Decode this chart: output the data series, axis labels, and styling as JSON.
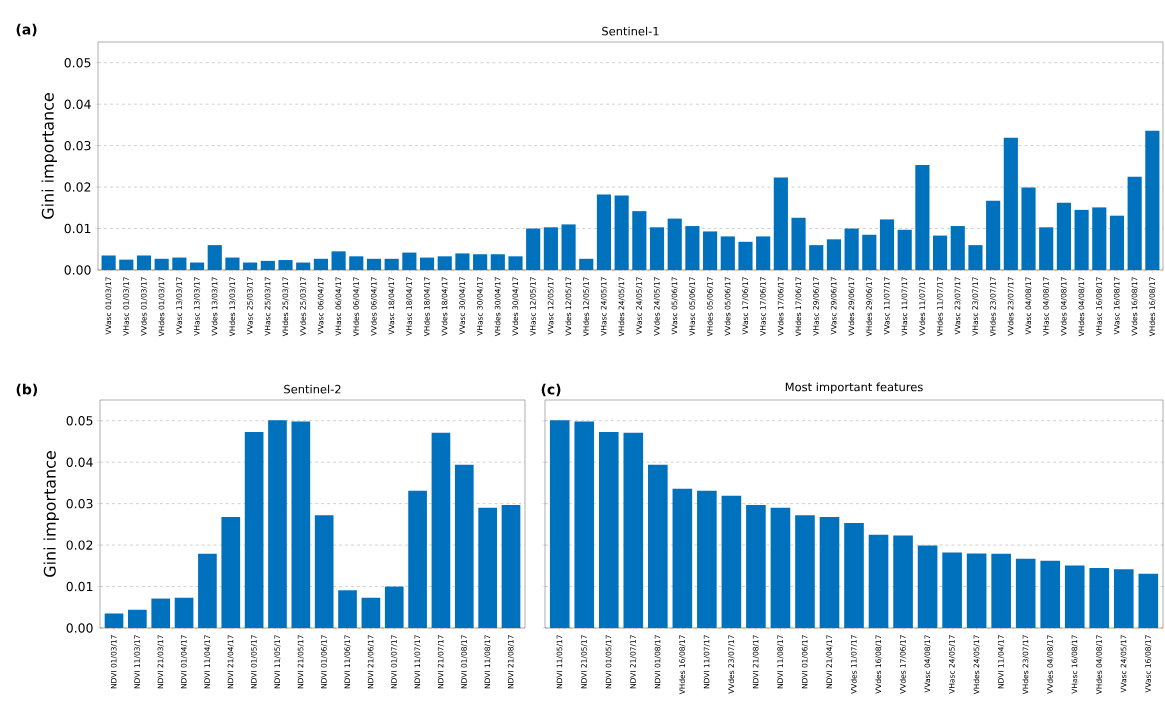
{
  "chart_data": [
    {
      "type": "bar",
      "title": "Sentinel-1",
      "ylabel": "Gini importance",
      "annotations": [
        "(a)"
      ],
      "color": "#0072bd",
      "grid": "y",
      "categories": [
        "VVasc 01/03/17",
        "VHasc 01/03/17",
        "VVdes 01/03/17",
        "VHdes 01/03/17",
        "VVasc 13/03/17",
        "VHasc 13/03/17",
        "VVdes 13/03/17",
        "VHdes 13/03/17",
        "VVasc 25/03/17",
        "VHasc 25/03/17",
        "VHdes 25/03/17",
        "VVdes 25/03/17",
        "VVasc 06/04/17",
        "VHasc 06/04/17",
        "VHdes 06/04/17",
        "VVdes 06/04/17",
        "VVasc 18/04/17",
        "VHasc 18/04/17",
        "VHdes 18/04/17",
        "VVdes 18/04/17",
        "VVasc 30/04/17",
        "VHasc 30/04/17",
        "VHdes 30/04/17",
        "VVdes 30/04/17",
        "VHasc 12/05/17",
        "VVasc 12/05/17",
        "VVdes 12/05/17",
        "VHdes 12/05/17",
        "VHasc 24/05/17",
        "VHdes 24/05/17",
        "VVasc 24/05/17",
        "VVdes 24/05/17",
        "VVasc 05/06/17",
        "VHasc 05/06/17",
        "VHdes 05/06/17",
        "VVdes 05/06/17",
        "VVasc 17/06/17",
        "VHasc 17/06/17",
        "VVdes 17/06/17",
        "VHdes 17/06/17",
        "VHasc 29/06/17",
        "VVasc 29/06/17",
        "VVdes 29/06/17",
        "VHdes 29/06/17",
        "VVasc 11/07/17",
        "VHasc 11/07/17",
        "VVdes 11/07/17",
        "VHdes 11/07/17",
        "VVasc 23/07/17",
        "VHasc 23/07/17",
        "VHdes 23/07/17",
        "VVdes 23/07/17",
        "VVasc 04/08/17",
        "VHasc 04/08/17",
        "VVdes 04/08/17",
        "VHdes 04/08/17",
        "VHasc 16/08/17",
        "VVasc 16/08/17",
        "VVdes 16/08/17",
        "VHdes 16/08/17"
      ],
      "values": [
        0.0035,
        0.0025,
        0.0035,
        0.0027,
        0.003,
        0.0018,
        0.006,
        0.003,
        0.0018,
        0.0022,
        0.0024,
        0.0018,
        0.0027,
        0.0045,
        0.0033,
        0.0027,
        0.0027,
        0.0042,
        0.003,
        0.0033,
        0.004,
        0.0038,
        0.0038,
        0.0033,
        0.01,
        0.0103,
        0.011,
        0.0027,
        0.0182,
        0.018,
        0.0142,
        0.0103,
        0.0124,
        0.0106,
        0.0093,
        0.0081,
        0.0068,
        0.0081,
        0.0223,
        0.0126,
        0.006,
        0.0074,
        0.01,
        0.0085,
        0.0122,
        0.0097,
        0.0253,
        0.0083,
        0.0106,
        0.006,
        0.0167,
        0.0319,
        0.0199,
        0.0103,
        0.0162,
        0.0145,
        0.0151,
        0.0131,
        0.0225,
        0.0336
      ],
      "ylim": [
        0,
        0.055
      ],
      "yticks": [
        {
          "value": 0,
          "label": "0.00"
        },
        {
          "value": 0.01,
          "label": "0.01"
        },
        {
          "value": 0.02,
          "label": "0.02"
        },
        {
          "value": 0.03,
          "label": "0.03"
        },
        {
          "value": 0.04,
          "label": "0.04"
        },
        {
          "value": 0.05,
          "label": "0.05"
        }
      ]
    },
    {
      "type": "bar",
      "title": "Sentinel-2",
      "ylabel": "Gini importance",
      "annotations": [
        "(b)"
      ],
      "color": "#0072bd",
      "grid": "y",
      "categories": [
        "NDVI 01/03/17",
        "NDVI 11/03/17",
        "NDVI 21/03/17",
        "NDVI 01/04/17",
        "NDVI 11/04/17",
        "NDVI 21/04/17",
        "NDVI 01/05/17",
        "NDVI 11/05/17",
        "NDVI 21/05/17",
        "NDVI 01/06/17",
        "NDVI 11/06/17",
        "NDVI 21/06/17",
        "NDVI 01/07/17",
        "NDVI 11/07/17",
        "NDVI 21/07/17",
        "NDVI 01/08/17",
        "NDVI 11/08/17",
        "NDVI 21/08/17"
      ],
      "values": [
        0.0035,
        0.0044,
        0.0071,
        0.0073,
        0.0179,
        0.0268,
        0.0473,
        0.0501,
        0.0498,
        0.0272,
        0.0091,
        0.0073,
        0.01,
        0.0331,
        0.0471,
        0.0394,
        0.029,
        0.0297
      ],
      "ylim": [
        0,
        0.055
      ],
      "yticks": [
        {
          "value": 0,
          "label": "0.00"
        },
        {
          "value": 0.01,
          "label": "0.01"
        },
        {
          "value": 0.02,
          "label": "0.02"
        },
        {
          "value": 0.03,
          "label": "0.03"
        },
        {
          "value": 0.04,
          "label": "0.04"
        },
        {
          "value": 0.05,
          "label": "0.05"
        }
      ]
    },
    {
      "type": "bar",
      "title": "Most important features",
      "annotations": [
        "(c)"
      ],
      "color": "#0072bd",
      "grid": "y",
      "tick_labels": "x",
      "categories": [
        "NDVI 11/05/17",
        "NDVI 21/05/17",
        "NDVI 01/05/17",
        "NDVI 21/07/17",
        "NDVI 01/08/17",
        "VHdes 16/08/17",
        "NDVI 11/07/17",
        "VVdes 23/07/17",
        "NDVI 21/08/17",
        "NDVI 11/08/17",
        "NDVI 01/06/17",
        "NDVI 21/04/17",
        "VVdes 11/07/17",
        "VVdes 16/08/17",
        "VVdes 17/06/17",
        "VVasc 04/08/17",
        "VHasc 24/05/17",
        "VHdes 24/05/17",
        "NDVI 11/04/17",
        "VHdes 23/07/17",
        "VVdes 04/08/17",
        "VHasc 16/08/17",
        "VHdes 04/08/17",
        "VVasc 24/05/17",
        "VVasc 16/08/17"
      ],
      "values": [
        0.0501,
        0.0498,
        0.0473,
        0.0471,
        0.0394,
        0.0336,
        0.0331,
        0.0319,
        0.0297,
        0.029,
        0.0272,
        0.0268,
        0.0253,
        0.0225,
        0.0223,
        0.0199,
        0.0182,
        0.018,
        0.0179,
        0.0167,
        0.0162,
        0.0151,
        0.0145,
        0.0142,
        0.0131
      ],
      "ylim": [
        0,
        0.055
      ],
      "yticks": [
        {
          "value": 0,
          "label": null
        },
        {
          "value": 0.01,
          "label": null
        },
        {
          "value": 0.02,
          "label": null
        },
        {
          "value": 0.03,
          "label": null
        },
        {
          "value": 0.04,
          "label": null
        },
        {
          "value": 0.05,
          "label": null
        }
      ]
    }
  ]
}
